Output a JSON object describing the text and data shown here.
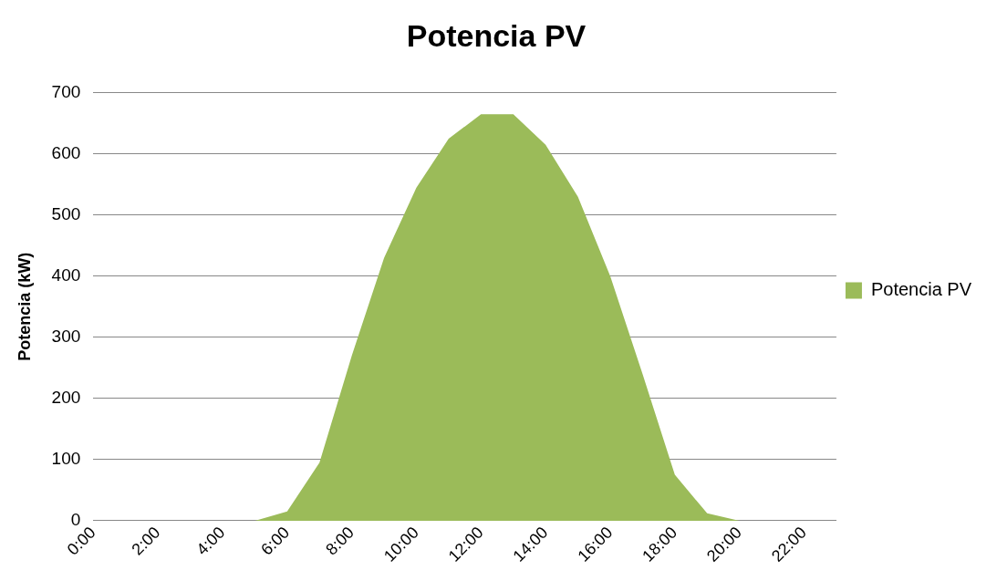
{
  "chart_data": {
    "type": "area",
    "title": "Potencia PV",
    "ylabel": "Potencia (kW)",
    "categories": [
      "0:00",
      null,
      "2:00",
      null,
      "4:00",
      null,
      "6:00",
      null,
      "8:00",
      null,
      "10:00",
      null,
      "12:00",
      null,
      "14:00",
      null,
      "16:00",
      null,
      "18:00",
      null,
      "20:00",
      null,
      "22:00",
      null
    ],
    "series": [
      {
        "name": "Potencia PV",
        "color": "#9bbb59",
        "values": [
          0,
          0,
          0,
          0,
          0,
          0,
          15,
          95,
          270,
          430,
          545,
          625,
          665,
          665,
          615,
          530,
          400,
          240,
          75,
          12,
          0,
          0,
          0,
          0
        ]
      }
    ],
    "ylim": [
      0,
      700
    ],
    "yticks": [
      0,
      100,
      200,
      300,
      400,
      500,
      600,
      700
    ],
    "grid": "y",
    "legend": "right",
    "marker": "none"
  }
}
